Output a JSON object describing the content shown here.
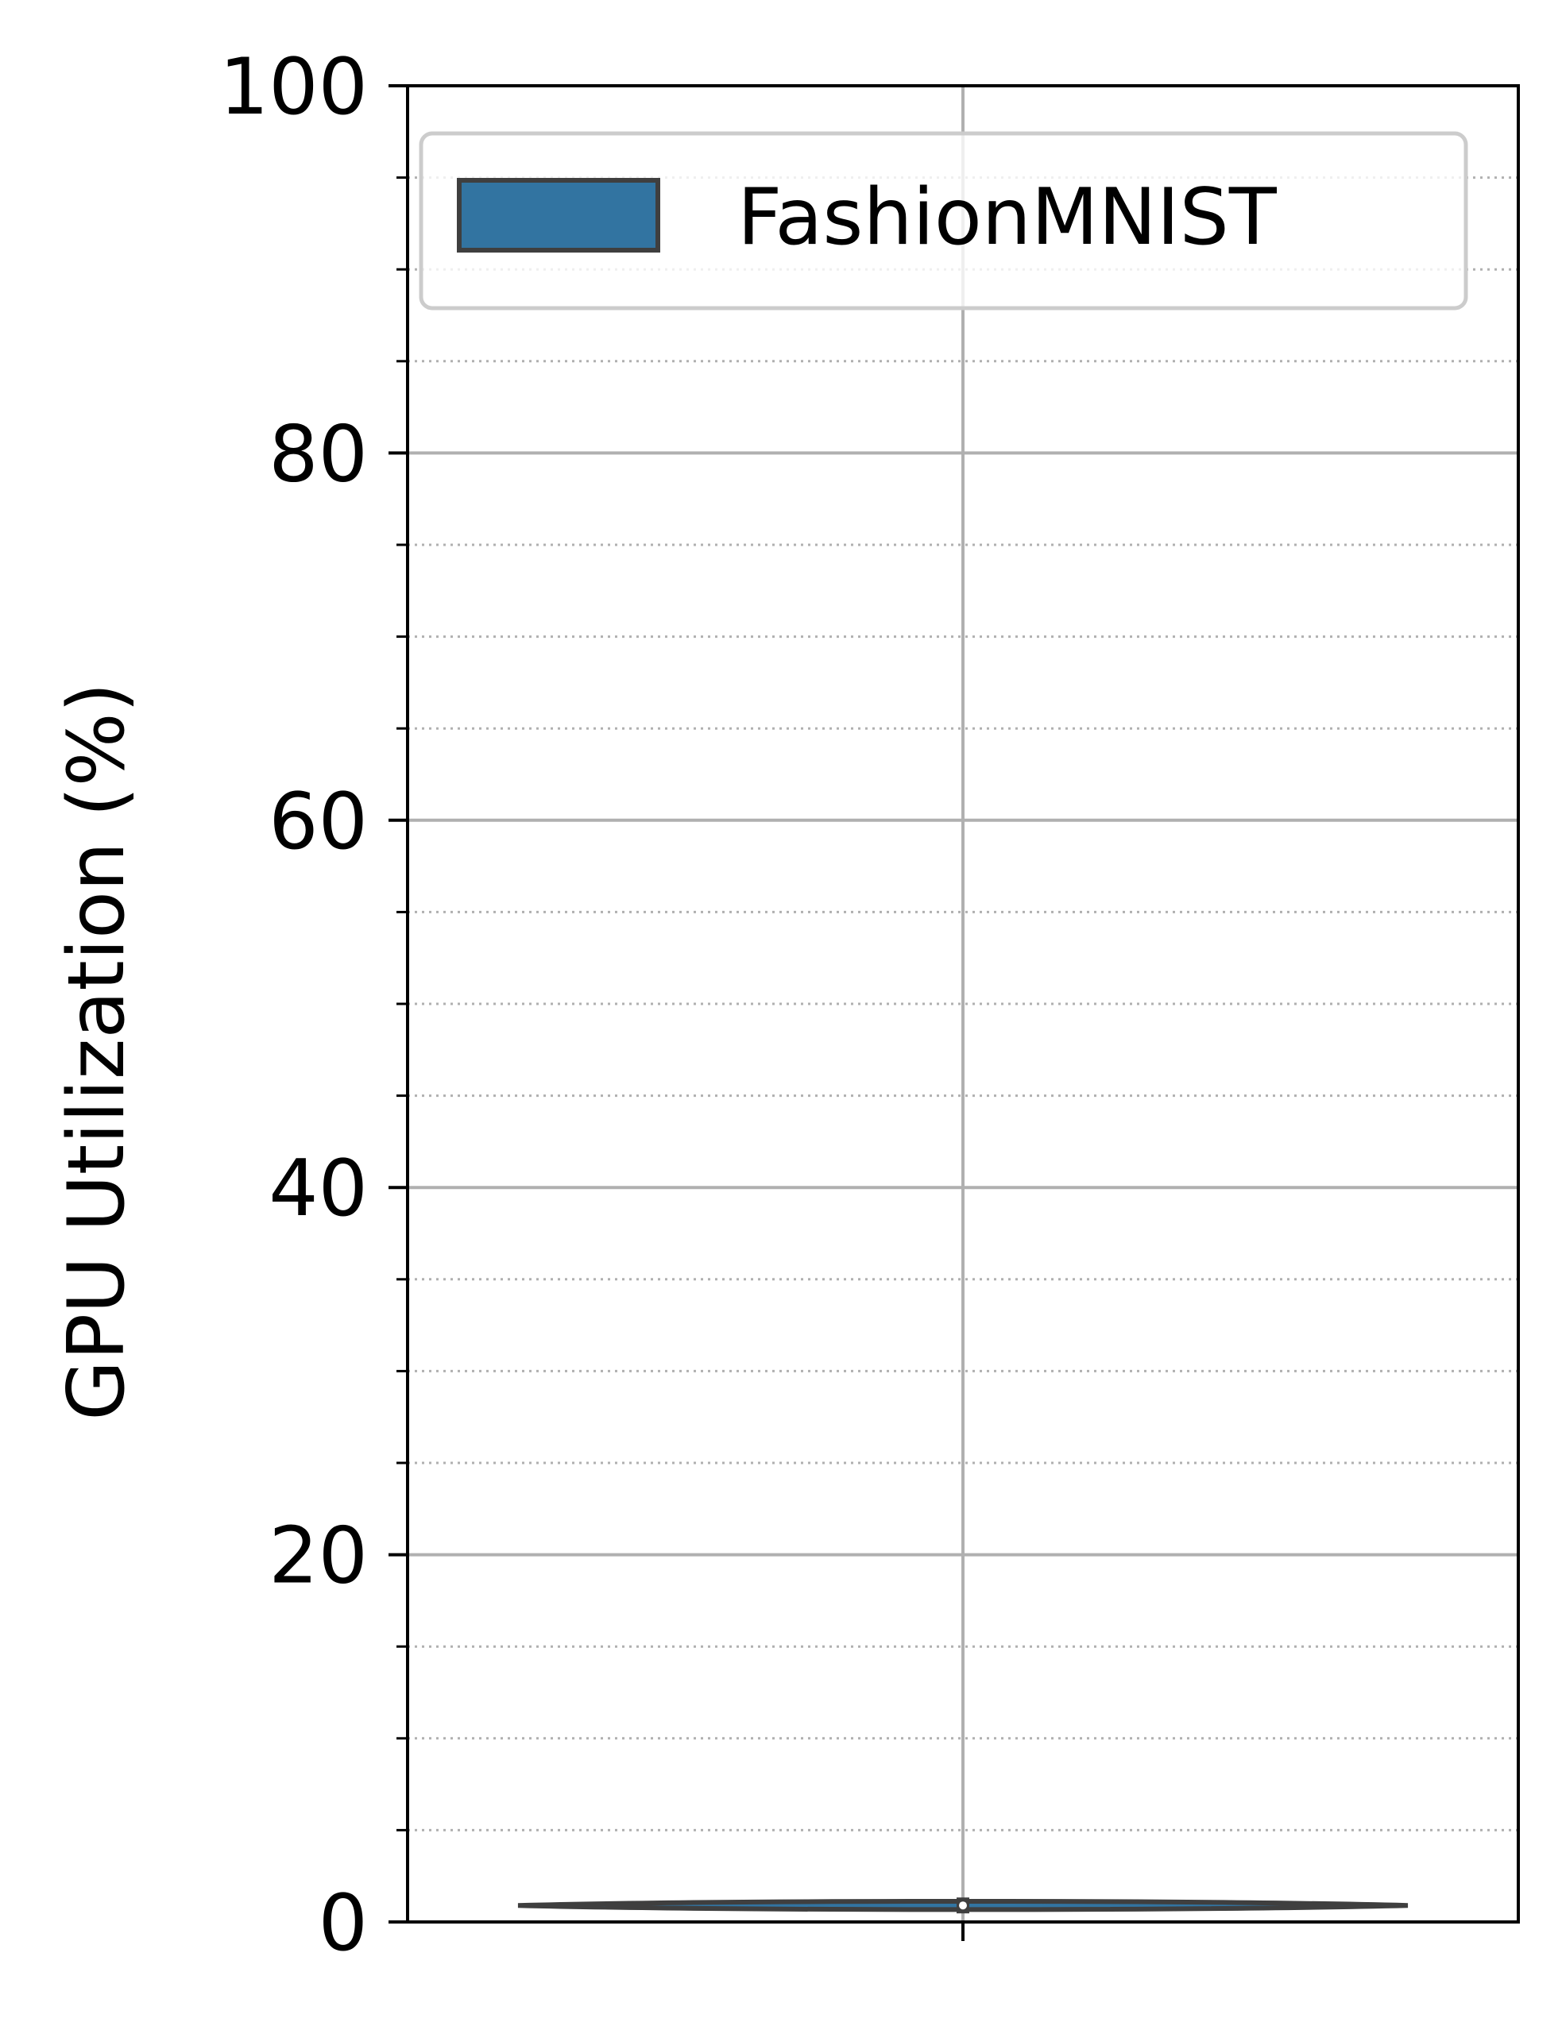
{
  "chart_data": {
    "type": "violin",
    "title": "",
    "xlabel": "",
    "ylabel": "GPU Utilization (%)",
    "ylim": [
      0,
      100
    ],
    "yticks": [
      0,
      20,
      40,
      60,
      80,
      100
    ],
    "ytick_labels": [
      "0",
      "20",
      "40",
      "60",
      "80",
      "100"
    ],
    "minor_yticks": [
      5,
      10,
      15,
      25,
      30,
      35,
      45,
      50,
      55,
      65,
      70,
      75,
      85,
      90,
      95
    ],
    "grid": {
      "major": true,
      "minor": true,
      "minor_style": "dotted"
    },
    "legend": {
      "location": "top-right"
    },
    "series": [
      {
        "name": "FashionMNIST",
        "color": "#3274a1",
        "median": 0.9,
        "min": 0.6,
        "max": 1.2
      }
    ]
  }
}
